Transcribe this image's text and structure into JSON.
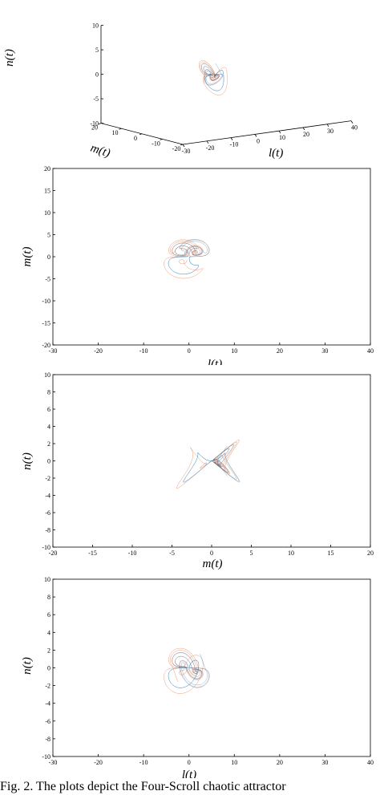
{
  "colors": {
    "series_blue": "#1f77b4",
    "series_orange": "#d95319"
  },
  "caption": "Fig. 2. The plots depict the Four-Scroll chaotic attractor",
  "chart_data": [
    {
      "type": "line",
      "view": "3d",
      "xlabel": "l(t)",
      "ylabel": "m(t)",
      "zlabel": "n(t)",
      "xlim": [
        -30,
        40
      ],
      "ylim": [
        -20,
        20
      ],
      "zlim": [
        -10,
        10
      ],
      "x_ticks": [
        "-30",
        "-20",
        "-10",
        "0",
        "10",
        "20",
        "30",
        "40"
      ],
      "y_ticks": [
        "-20",
        "-10",
        "0",
        "10",
        "20"
      ],
      "z_ticks": [
        "-10",
        "-5",
        "0",
        "5",
        "10"
      ],
      "series": [
        {
          "color": "#1f77b4"
        },
        {
          "color": "#d95319"
        }
      ]
    },
    {
      "type": "line",
      "xlabel": "l(t)",
      "ylabel": "m(t)",
      "xlim": [
        -30,
        40
      ],
      "ylim": [
        -20,
        20
      ],
      "x_ticks": [
        "-30",
        "-20",
        "-10",
        "0",
        "10",
        "20",
        "30",
        "40"
      ],
      "y_ticks": [
        "20",
        "15",
        "10",
        "5",
        "0",
        "-5",
        "-10",
        "-15",
        "-20"
      ],
      "series": [
        {
          "color": "#1f77b4"
        },
        {
          "color": "#d95319"
        }
      ]
    },
    {
      "type": "line",
      "xlabel": "m(t)",
      "ylabel": "n(t)",
      "xlim": [
        -20,
        20
      ],
      "ylim": [
        -10,
        10
      ],
      "x_ticks": [
        "-20",
        "-15",
        "-10",
        "-5",
        "0",
        "5",
        "10",
        "15",
        "20"
      ],
      "y_ticks": [
        "10",
        "8",
        "6",
        "4",
        "2",
        "0",
        "-2",
        "-4",
        "-6",
        "-8",
        "-10"
      ],
      "series": [
        {
          "color": "#1f77b4"
        },
        {
          "color": "#d95319"
        }
      ]
    },
    {
      "type": "line",
      "xlabel": "l(t)",
      "ylabel": "n(t)",
      "xlim": [
        -30,
        40
      ],
      "ylim": [
        -10,
        10
      ],
      "x_ticks": [
        "-30",
        "-20",
        "-10",
        "0",
        "10",
        "20",
        "30",
        "40"
      ],
      "y_ticks": [
        "10",
        "8",
        "6",
        "4",
        "2",
        "0",
        "-2",
        "-4",
        "-6",
        "-8",
        "-10"
      ],
      "series": [
        {
          "color": "#1f77b4"
        },
        {
          "color": "#d95319"
        }
      ]
    }
  ]
}
